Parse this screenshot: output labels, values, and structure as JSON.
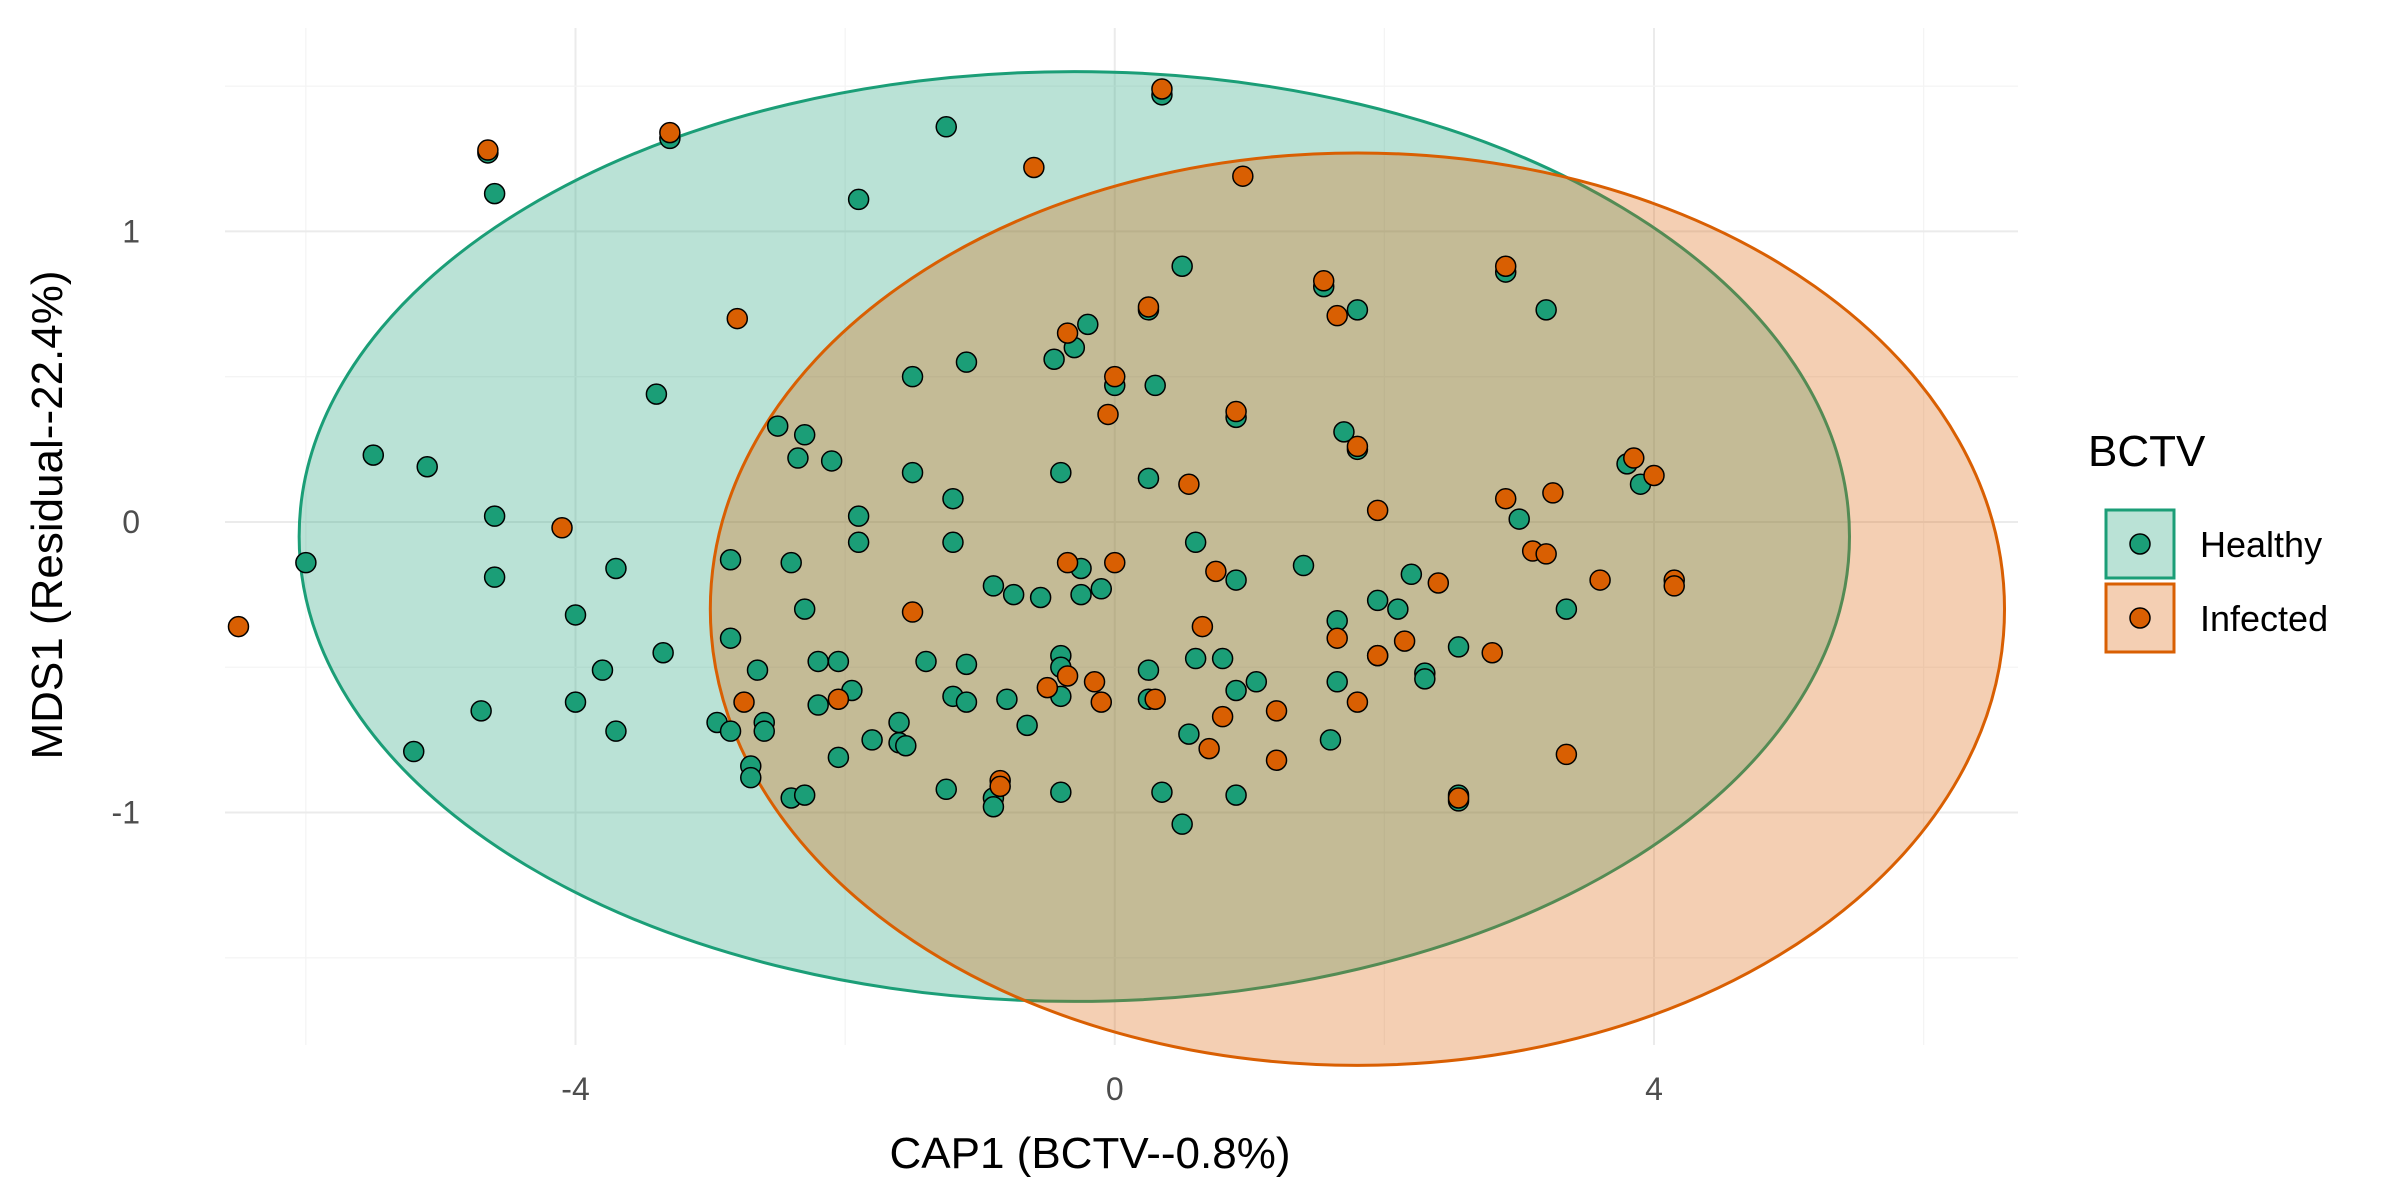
{
  "chart_data": {
    "type": "scatter",
    "title": "",
    "xlabel": "CAP1 (BCTV--0.8%)",
    "ylabel": "MDS1 (Residual--22.4%)",
    "xlim": [
      -6.6,
      6.7
    ],
    "ylim": [
      -1.8,
      1.7
    ],
    "x_ticks": [
      -4,
      0,
      4
    ],
    "x_tick_labels": [
      "-4",
      "0",
      "4"
    ],
    "y_ticks": [
      -1,
      0,
      1
    ],
    "y_tick_labels": [
      "-1",
      "0",
      "1"
    ],
    "grid": true,
    "legend": {
      "title": "BCTV",
      "position": "right",
      "entries": [
        "Healthy",
        "Infected"
      ]
    },
    "ellipses": [
      {
        "group": "Healthy",
        "cx": -0.3,
        "cy": -0.05,
        "rx": 5.75,
        "ry": 1.6
      },
      {
        "group": "Infected",
        "cx": 1.8,
        "cy": -0.3,
        "rx": 4.8,
        "ry": 1.57
      }
    ],
    "series": [
      {
        "name": "Healthy",
        "color": "#1b9e77",
        "points": [
          [
            -4.65,
            1.27
          ],
          [
            -4.6,
            1.13
          ],
          [
            -3.3,
            1.32
          ],
          [
            -1.25,
            1.36
          ],
          [
            0.35,
            1.47
          ],
          [
            -1.9,
            1.11
          ],
          [
            0.5,
            0.88
          ],
          [
            0.25,
            0.73
          ],
          [
            -0.2,
            0.68
          ],
          [
            -0.3,
            0.6
          ],
          [
            -0.45,
            0.56
          ],
          [
            -1.1,
            0.55
          ],
          [
            -1.5,
            0.5
          ],
          [
            0.0,
            0.47
          ],
          [
            0.3,
            0.47
          ],
          [
            -3.4,
            0.44
          ],
          [
            1.8,
            0.73
          ],
          [
            3.2,
            0.73
          ],
          [
            2.9,
            0.86
          ],
          [
            1.55,
            0.81
          ],
          [
            -2.5,
            0.33
          ],
          [
            -2.3,
            0.3
          ],
          [
            -2.35,
            0.22
          ],
          [
            -2.1,
            0.21
          ],
          [
            -5.5,
            0.23
          ],
          [
            -5.1,
            0.19
          ],
          [
            -1.5,
            0.17
          ],
          [
            -0.4,
            0.17
          ],
          [
            0.25,
            0.15
          ],
          [
            -1.2,
            0.08
          ],
          [
            -4.6,
            0.02
          ],
          [
            -1.9,
            0.02
          ],
          [
            -1.9,
            -0.07
          ],
          [
            -1.2,
            -0.07
          ],
          [
            0.9,
            0.36
          ],
          [
            1.7,
            0.31
          ],
          [
            1.8,
            0.25
          ],
          [
            3.8,
            0.2
          ],
          [
            3.9,
            0.13
          ],
          [
            3.0,
            0.01
          ],
          [
            0.6,
            -0.07
          ],
          [
            -6.0,
            -0.14
          ],
          [
            -3.7,
            -0.16
          ],
          [
            -2.85,
            -0.13
          ],
          [
            -2.4,
            -0.14
          ],
          [
            -0.25,
            -0.16
          ],
          [
            1.4,
            -0.15
          ],
          [
            -4.6,
            -0.19
          ],
          [
            -0.9,
            -0.22
          ],
          [
            -0.75,
            -0.25
          ],
          [
            -0.55,
            -0.26
          ],
          [
            -0.25,
            -0.25
          ],
          [
            -0.1,
            -0.23
          ],
          [
            0.9,
            -0.2
          ],
          [
            2.2,
            -0.18
          ],
          [
            1.95,
            -0.27
          ],
          [
            2.1,
            -0.3
          ],
          [
            1.65,
            -0.34
          ],
          [
            3.35,
            -0.3
          ],
          [
            -4.0,
            -0.32
          ],
          [
            -2.3,
            -0.3
          ],
          [
            -2.85,
            -0.4
          ],
          [
            -3.35,
            -0.45
          ],
          [
            -3.8,
            -0.51
          ],
          [
            -2.65,
            -0.51
          ],
          [
            -2.2,
            -0.48
          ],
          [
            -2.05,
            -0.48
          ],
          [
            -1.4,
            -0.48
          ],
          [
            -1.1,
            -0.49
          ],
          [
            -0.4,
            -0.46
          ],
          [
            -0.4,
            -0.5
          ],
          [
            0.25,
            -0.51
          ],
          [
            0.6,
            -0.47
          ],
          [
            0.8,
            -0.47
          ],
          [
            1.95,
            -0.46
          ],
          [
            2.55,
            -0.43
          ],
          [
            2.3,
            -0.52
          ],
          [
            2.3,
            -0.54
          ],
          [
            1.65,
            -0.55
          ],
          [
            1.05,
            -0.55
          ],
          [
            0.9,
            -0.58
          ],
          [
            -4.7,
            -0.65
          ],
          [
            -4.0,
            -0.62
          ],
          [
            -2.2,
            -0.63
          ],
          [
            -1.95,
            -0.58
          ],
          [
            -1.2,
            -0.6
          ],
          [
            -1.1,
            -0.62
          ],
          [
            -0.8,
            -0.61
          ],
          [
            -0.4,
            -0.6
          ],
          [
            0.25,
            -0.61
          ],
          [
            -3.7,
            -0.72
          ],
          [
            -2.95,
            -0.69
          ],
          [
            -2.85,
            -0.72
          ],
          [
            -2.6,
            -0.69
          ],
          [
            -2.6,
            -0.72
          ],
          [
            -1.8,
            -0.75
          ],
          [
            -1.6,
            -0.76
          ],
          [
            -1.6,
            -0.69
          ],
          [
            -1.55,
            -0.77
          ],
          [
            -0.65,
            -0.7
          ],
          [
            0.55,
            -0.73
          ],
          [
            1.6,
            -0.75
          ],
          [
            -5.2,
            -0.79
          ],
          [
            -2.7,
            -0.84
          ],
          [
            -2.7,
            -0.88
          ],
          [
            -2.05,
            -0.81
          ],
          [
            -1.25,
            -0.92
          ],
          [
            -0.9,
            -0.95
          ],
          [
            -0.9,
            -0.98
          ],
          [
            -0.4,
            -0.93
          ],
          [
            0.35,
            -0.93
          ],
          [
            0.9,
            -0.94
          ],
          [
            2.55,
            -0.94
          ],
          [
            2.55,
            -0.96
          ],
          [
            -2.4,
            -0.95
          ],
          [
            -2.3,
            -0.94
          ],
          [
            0.5,
            -1.04
          ]
        ]
      },
      {
        "name": "Infected",
        "color": "#d95f02",
        "points": [
          [
            -4.65,
            1.28
          ],
          [
            -3.3,
            1.34
          ],
          [
            0.35,
            1.49
          ],
          [
            -0.6,
            1.22
          ],
          [
            0.95,
            1.19
          ],
          [
            -2.8,
            0.7
          ],
          [
            -0.35,
            0.65
          ],
          [
            0.25,
            0.74
          ],
          [
            1.55,
            0.83
          ],
          [
            1.65,
            0.71
          ],
          [
            2.9,
            0.88
          ],
          [
            0.0,
            0.5
          ],
          [
            -0.05,
            0.37
          ],
          [
            0.9,
            0.38
          ],
          [
            1.8,
            0.26
          ],
          [
            3.85,
            0.22
          ],
          [
            4.0,
            0.16
          ],
          [
            0.55,
            0.13
          ],
          [
            1.95,
            0.04
          ],
          [
            2.9,
            0.08
          ],
          [
            3.25,
            0.1
          ],
          [
            -4.1,
            -0.02
          ],
          [
            3.1,
            -0.1
          ],
          [
            3.2,
            -0.11
          ],
          [
            0.0,
            -0.14
          ],
          [
            -0.35,
            -0.14
          ],
          [
            0.75,
            -0.17
          ],
          [
            3.6,
            -0.2
          ],
          [
            4.15,
            -0.2
          ],
          [
            4.15,
            -0.22
          ],
          [
            2.4,
            -0.21
          ],
          [
            -6.5,
            -0.36
          ],
          [
            -1.5,
            -0.31
          ],
          [
            0.65,
            -0.36
          ],
          [
            1.65,
            -0.4
          ],
          [
            2.15,
            -0.41
          ],
          [
            1.95,
            -0.46
          ],
          [
            2.8,
            -0.45
          ],
          [
            -0.35,
            -0.53
          ],
          [
            -0.5,
            -0.57
          ],
          [
            -0.15,
            -0.55
          ],
          [
            0.3,
            -0.61
          ],
          [
            1.2,
            -0.65
          ],
          [
            1.8,
            -0.62
          ],
          [
            -2.75,
            -0.62
          ],
          [
            -2.05,
            -0.61
          ],
          [
            -0.1,
            -0.62
          ],
          [
            0.8,
            -0.67
          ],
          [
            0.7,
            -0.78
          ],
          [
            1.2,
            -0.82
          ],
          [
            3.35,
            -0.8
          ],
          [
            -0.85,
            -0.89
          ],
          [
            -0.85,
            -0.91
          ],
          [
            2.55,
            -0.95
          ]
        ]
      }
    ]
  }
}
